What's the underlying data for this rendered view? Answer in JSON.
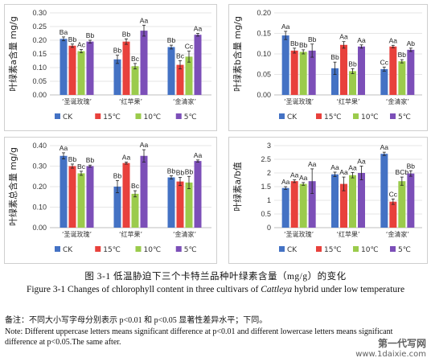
{
  "categories": [
    "‘圣诞玫瑰’",
    "‘红苹果’",
    "‘金清家’"
  ],
  "legend": [
    "CK",
    "15℃",
    "10℃",
    "5℃"
  ],
  "colors": [
    "#4472c4",
    "#e8413c",
    "#9bcb4c",
    "#7c4fb8"
  ],
  "chart_data": [
    {
      "type": "bar",
      "ylabel": "叶绿素a含量 mg/g",
      "ylim": [
        0,
        0.3
      ],
      "yticks": [
        "0.00",
        "0.05",
        "0.10",
        "0.15",
        "0.20",
        "0.25",
        "0.30"
      ],
      "yticks_num": [
        0,
        0.05,
        0.1,
        0.15,
        0.2,
        0.25,
        0.3
      ],
      "categories": [
        "‘圣诞玫瑰’",
        "‘红苹果’",
        "‘金清家’"
      ],
      "series": [
        {
          "name": "CK",
          "values": [
            0.205,
            0.13,
            0.175
          ],
          "errors": [
            0.007,
            0.015,
            0.007
          ],
          "labels": [
            "Ba",
            "Bb",
            "Bb"
          ]
        },
        {
          "name": "15℃",
          "values": [
            0.18,
            0.195,
            0.11
          ],
          "errors": [
            0.006,
            0.01,
            0.015
          ],
          "labels": [
            "Bb",
            "Bb",
            "Bc"
          ]
        },
        {
          "name": "10℃",
          "values": [
            0.16,
            0.105,
            0.14
          ],
          "errors": [
            0.006,
            0.01,
            0.02
          ],
          "labels": [
            "Ac",
            "Bc",
            "Cc"
          ]
        },
        {
          "name": "5℃",
          "values": [
            0.195,
            0.235,
            0.22
          ],
          "errors": [
            0.005,
            0.02,
            0.005
          ],
          "labels": [
            "Bb",
            "Aa",
            "Aa"
          ]
        }
      ]
    },
    {
      "type": "bar",
      "ylabel": "叶绿素b含量 mg/g",
      "ylim": [
        0,
        0.2
      ],
      "yticks": [
        "0.00",
        "0.05",
        "0.10",
        "0.15",
        "0.20"
      ],
      "yticks_num": [
        0,
        0.05,
        0.1,
        0.15,
        0.2
      ],
      "categories": [
        "‘圣诞玫瑰’",
        "‘红苹果’",
        "‘金清家’"
      ],
      "series": [
        {
          "name": "CK",
          "values": [
            0.145,
            0.065,
            0.063
          ],
          "errors": [
            0.01,
            0.015,
            0.005
          ],
          "labels": [
            "Aa",
            "Bb",
            "Cc"
          ]
        },
        {
          "name": "15℃",
          "values": [
            0.108,
            0.122,
            0.118
          ],
          "errors": [
            0.006,
            0.008,
            0.003
          ],
          "labels": [
            "Bb",
            "Aa",
            "Aa"
          ]
        },
        {
          "name": "10℃",
          "values": [
            0.105,
            0.058,
            0.082
          ],
          "errors": [
            0.005,
            0.006,
            0.004
          ],
          "labels": [
            "Bb",
            "Bb",
            "Bb"
          ]
        },
        {
          "name": "5℃",
          "values": [
            0.108,
            0.118,
            0.11
          ],
          "errors": [
            0.016,
            0.004,
            0.004
          ],
          "labels": [
            "Bb",
            "Aa",
            "Ab"
          ]
        }
      ]
    },
    {
      "type": "bar",
      "ylabel": "叶绿素总含量 mg/g",
      "ylim": [
        0,
        0.4
      ],
      "yticks": [
        "0.00",
        "0.10",
        "0.20",
        "0.30",
        "0.40"
      ],
      "yticks_num": [
        0,
        0.1,
        0.2,
        0.3,
        0.4
      ],
      "categories": [
        "‘圣诞玫瑰’",
        "‘红苹果’",
        "‘金清家’"
      ],
      "series": [
        {
          "name": "CK",
          "values": [
            0.35,
            0.2,
            0.245
          ],
          "errors": [
            0.015,
            0.03,
            0.008
          ],
          "labels": [
            "Aa",
            "Bb",
            "Bb"
          ]
        },
        {
          "name": "15℃",
          "values": [
            0.3,
            0.315,
            0.225
          ],
          "errors": [
            0.01,
            0.005,
            0.02
          ],
          "labels": [
            "Bb",
            "Aa",
            "Bb"
          ]
        },
        {
          "name": "10℃",
          "values": [
            0.265,
            0.165,
            0.22
          ],
          "errors": [
            0.01,
            0.015,
            0.03
          ],
          "labels": [
            "Bc",
            "Bc",
            "Bb"
          ]
        },
        {
          "name": "5℃",
          "values": [
            0.3,
            0.35,
            0.325
          ],
          "errors": [
            0.005,
            0.03,
            0.005
          ],
          "labels": [
            "Bb",
            "Aa",
            "Aa"
          ]
        }
      ]
    },
    {
      "type": "bar",
      "ylabel": "叶绿素a/b值",
      "ylim": [
        0,
        3
      ],
      "yticks": [
        "0",
        "0.5",
        "1",
        "1.5",
        "2",
        "2.5",
        "3"
      ],
      "yticks_num": [
        0,
        0.5,
        1,
        1.5,
        2,
        2.5,
        3
      ],
      "categories": [
        "‘圣诞玫瑰’",
        "‘红苹果’",
        "‘金清家’"
      ],
      "series": [
        {
          "name": "CK",
          "values": [
            1.45,
            1.95,
            2.7
          ],
          "errors": [
            0.05,
            0.08,
            0.06
          ],
          "labels": [
            "Aa",
            "Aa",
            "Aa"
          ]
        },
        {
          "name": "15℃",
          "values": [
            1.7,
            1.6,
            0.95
          ],
          "errors": [
            0.05,
            0.25,
            0.1
          ],
          "labels": [
            "Aa",
            "Aa",
            "Cc"
          ]
        },
        {
          "name": "10℃",
          "values": [
            1.6,
            1.92,
            1.7
          ],
          "errors": [
            0.05,
            0.1,
            0.15
          ],
          "labels": [
            "Aa",
            "Aa",
            "BCb"
          ]
        },
        {
          "name": "5℃",
          "values": [
            1.7,
            2.0,
            1.98
          ],
          "errors": [
            0.45,
            0.25,
            0.1
          ],
          "labels": [
            "Aa",
            "Aa",
            "Bb"
          ]
        }
      ]
    }
  ],
  "caption_cn": "图 3-1  低温胁迫下三个卡特兰品种叶绿素含量（mg/g）的变化",
  "caption_en_pre": "Figure 3-1 Changes of chlorophyll content in three cultivars of ",
  "caption_en_italic": "Cattleya",
  "caption_en_post": " hybrid under low temperature",
  "note_cn": "备注：不同大小写字母分别表示 p<0.01 和 p<0.05 显著性差异水平；下同。",
  "note_en": "Note: Different uppercase letters means significant difference at p<0.01 and different lowercase letters means significant difference at p<0.05.The same after.",
  "watermark_1": "第一代写网",
  "watermark_2": "www.1daixie.com"
}
